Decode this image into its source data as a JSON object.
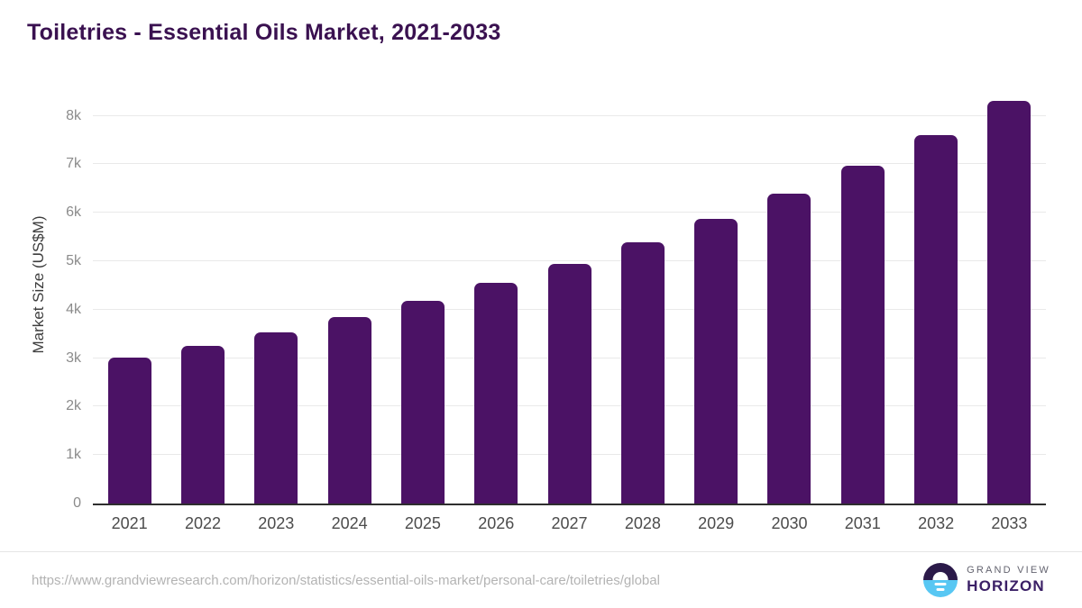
{
  "chart_data": {
    "type": "bar",
    "title": "Toiletries - Essential Oils Market, 2021-2033",
    "xlabel": "",
    "ylabel": "Market Size (US$M)",
    "categories": [
      "2021",
      "2022",
      "2023",
      "2024",
      "2025",
      "2026",
      "2027",
      "2028",
      "2029",
      "2030",
      "2031",
      "2032",
      "2033"
    ],
    "values": [
      3020,
      3250,
      3530,
      3850,
      4180,
      4550,
      4950,
      5400,
      5880,
      6400,
      6970,
      7610,
      8310
    ],
    "ylim": [
      0,
      8532
    ],
    "yticks": [
      {
        "value": 0,
        "label": "0"
      },
      {
        "value": 1000,
        "label": "1k"
      },
      {
        "value": 2000,
        "label": "2k"
      },
      {
        "value": 3000,
        "label": "3k"
      },
      {
        "value": 4000,
        "label": "4k"
      },
      {
        "value": 5000,
        "label": "5k"
      },
      {
        "value": 6000,
        "label": "6k"
      },
      {
        "value": 7000,
        "label": "7k"
      },
      {
        "value": 8000,
        "label": "8k"
      }
    ],
    "grid": "horizontal",
    "legend": "none",
    "bar_color": "#4b1265"
  },
  "colors": {
    "title_text": "#3a1150",
    "axis_line": "#2e2e2e",
    "gridline": "#e9e9e9",
    "y_tick_text": "#8b8b8b",
    "x_tick_text": "#4c4c4c",
    "footer_url_text": "#b3b3b3",
    "logo_dark": "#2b1a49",
    "logo_blue": "#58c7f3"
  },
  "footer": {
    "source_url": "https://www.grandviewresearch.com/horizon/statistics/essential-oils-market/personal-care/toiletries/global",
    "logo": {
      "line1": "GRAND VIEW",
      "line2": "HORIZON"
    }
  }
}
